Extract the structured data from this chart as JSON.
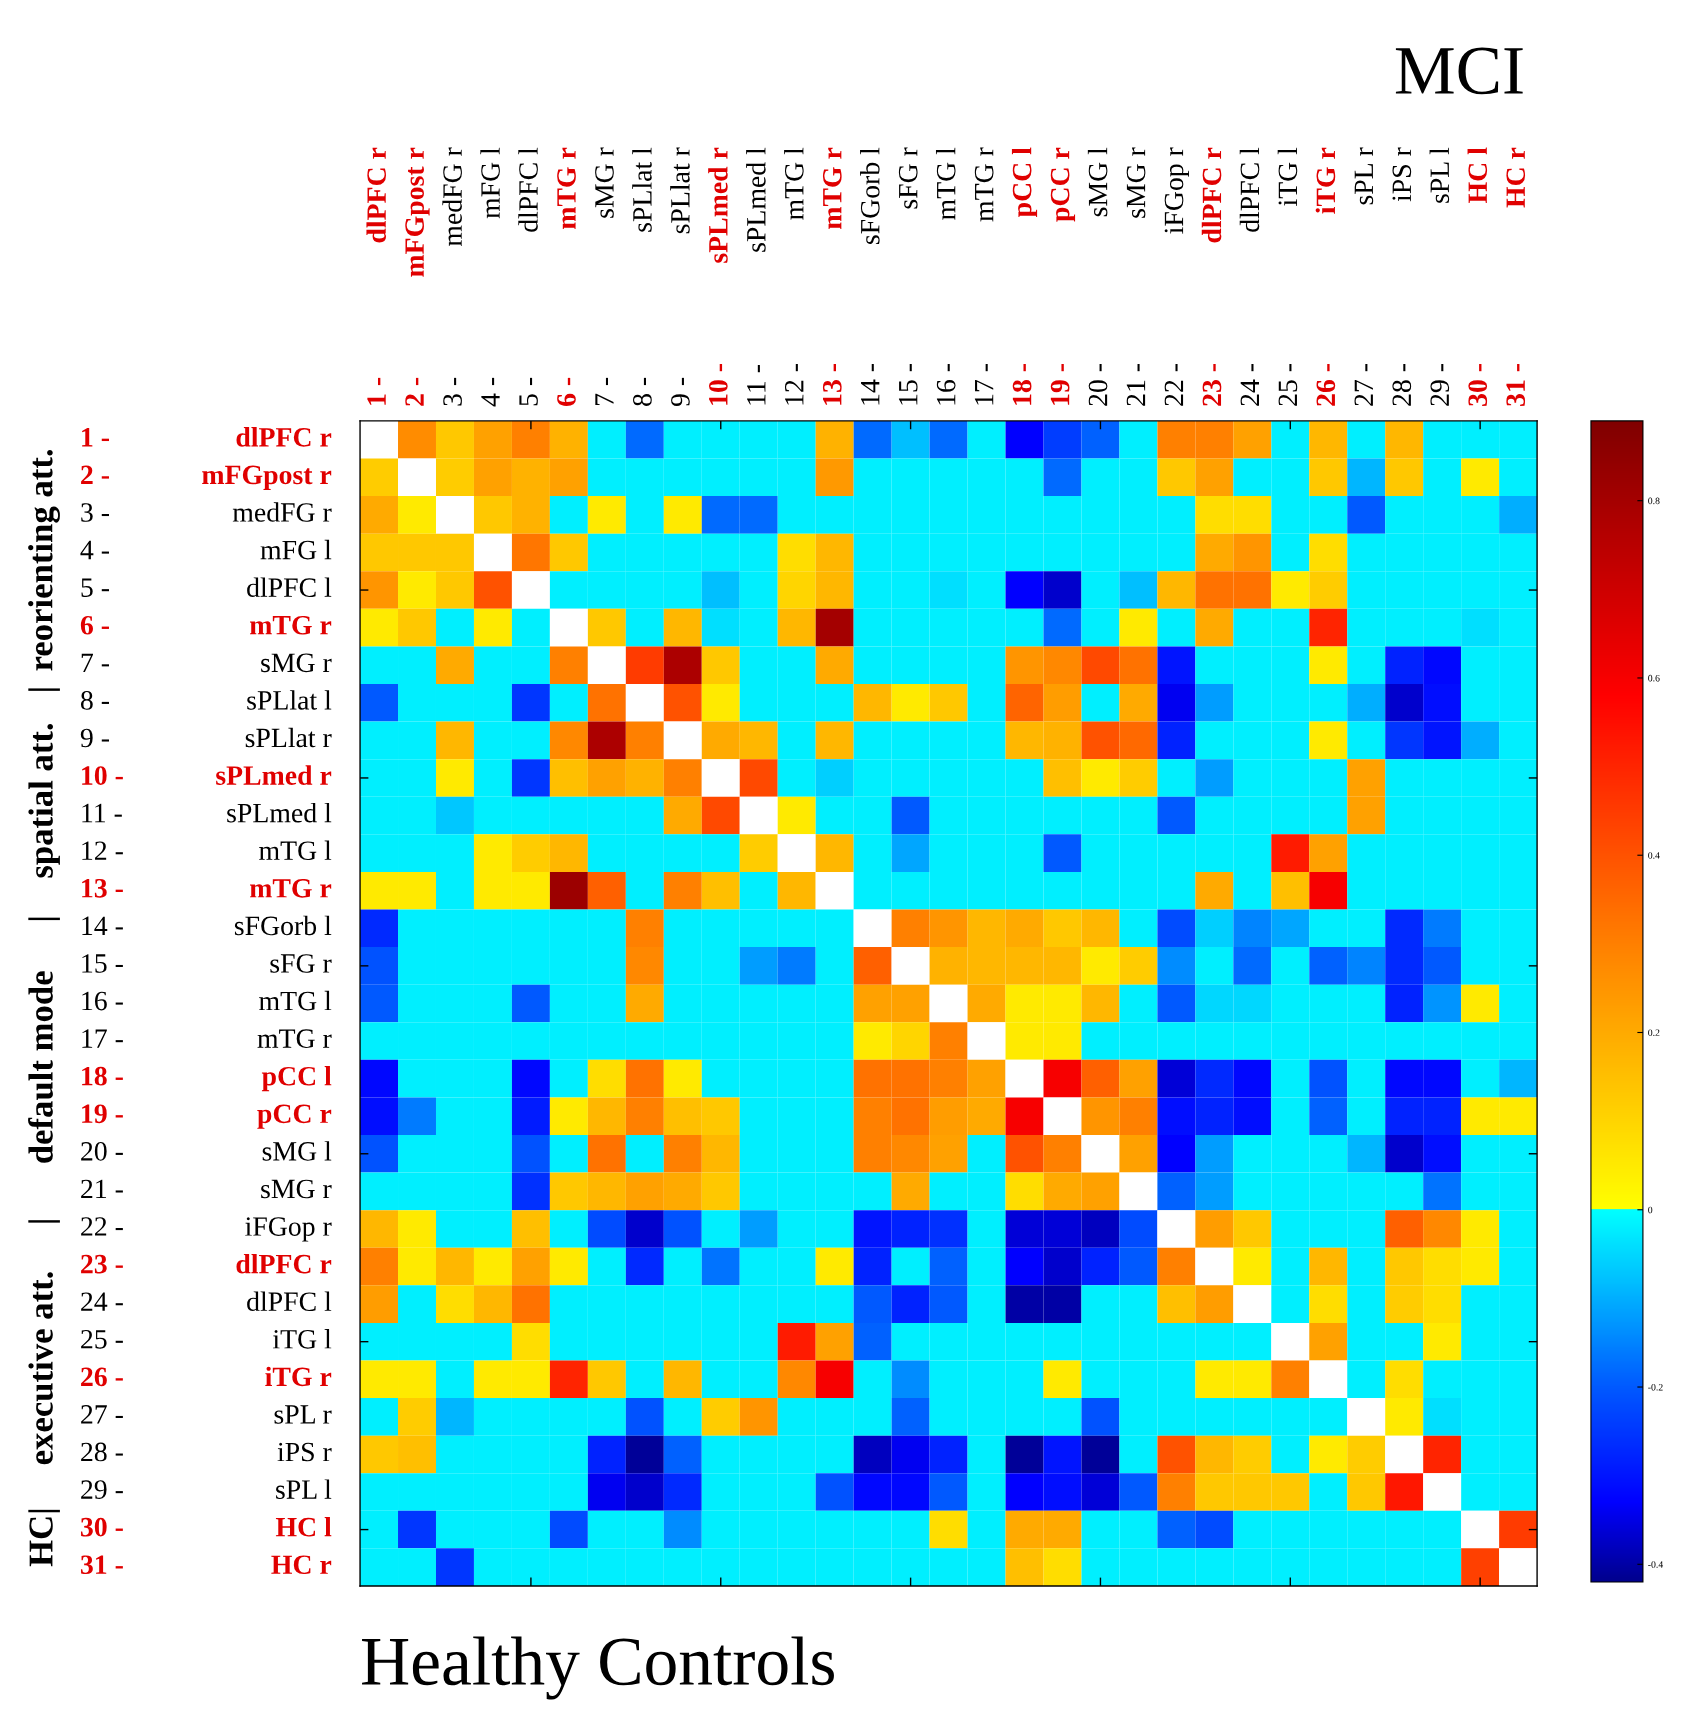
{
  "chart_data": {
    "type": "heatmap",
    "title": "MCI",
    "xlabel": "Healthy Controls",
    "categories": [
      "dlPFC r",
      "mFGpost r",
      "medFG r",
      "mFG l",
      "dlPFC l",
      "mTG r",
      "sMG r",
      "sPLlat l",
      "sPLlat r",
      "sPLmed r",
      "sPLmed l",
      "mTG l",
      "mTG r",
      "sFGorb l",
      "sFG r",
      "mTG l",
      "mTG r",
      "pCC l",
      "pCC r",
      "sMG l",
      "sMG r",
      "iFGop r",
      "dlPFC r",
      "dlPFC l",
      "iTG l",
      "iTG r",
      "sPL r",
      "iPS r",
      "sPL l",
      "HC l",
      "HC r"
    ],
    "y_categories": [
      "dlPFC r",
      "mFGpost r",
      "medFG r",
      "mFG l",
      "dlPFC l",
      "mTG r",
      "sMG r",
      "sPLlat l",
      "sPLlat r",
      "sPLmed r",
      "sPLmed l",
      "mTG l",
      "mTG r",
      "sFGorb l",
      "sFG r",
      "mTG l",
      "mTG r",
      "pCC l",
      "pCC r",
      "sMG l",
      "sMG r",
      "iFGop r",
      "dlPFC r",
      "dlPFC l",
      "iTG l",
      "iTG r",
      "sPL r",
      "iPS r",
      "sPL l",
      "HC l",
      "HC r"
    ],
    "y2_categories": [
      "1 -",
      "2 -",
      "3 -",
      "4 -",
      "5 -",
      "6 -",
      "7 -",
      "8 -",
      "9 -",
      "10 -",
      "11 -",
      "12 -",
      "13 -",
      "14 -",
      "15 -",
      "16 -",
      "17 -",
      "18 -",
      "19 -",
      "20 -",
      "21 -",
      "22 -",
      "23 -",
      "24 -",
      "25 -",
      "26 -",
      "27 -",
      "28 -",
      "29 -",
      "30 -",
      "31 -"
    ],
    "colors": [
      "#e00000",
      "#e00000",
      "#000000",
      "#000000",
      "#000000",
      "#e00000",
      "#000000",
      "#000000",
      "#000000",
      "#e00000",
      "#000000",
      "#000000",
      "#e00000",
      "#000000",
      "#000000",
      "#000000",
      "#000000",
      "#e00000",
      "#e00000",
      "#000000",
      "#000000",
      "#000000",
      "#e00000",
      "#000000",
      "#000000",
      "#e00000",
      "#000000",
      "#000000",
      "#000000",
      "#e00000",
      "#e00000"
    ],
    "annotations": [
      "reorienting att.",
      "|",
      "spatial att.",
      "|",
      "default mode",
      "|",
      "executive att.",
      "HC|"
    ],
    "clim": [
      -0.42,
      0.89
    ],
    "cticks": [
      -0.4,
      -0.2,
      0,
      0.2,
      0.4,
      0.6,
      0.8
    ],
    "grid": false,
    "cells": [
      [
        null,
        0.27,
        0.13,
        0.22,
        0.3,
        0.18,
        -0.02,
        -0.18,
        -0.02,
        -0.02,
        -0.02,
        -0.02,
        0.18,
        -0.18,
        -0.08,
        -0.18,
        -0.02,
        -0.33,
        -0.24,
        -0.19,
        -0.02,
        0.3,
        0.3,
        0.22,
        -0.02,
        0.17,
        -0.02,
        0.17,
        -0.02,
        -0.02,
        -0.02
      ],
      [
        0.12,
        null,
        0.12,
        0.22,
        0.18,
        0.22,
        -0.02,
        -0.02,
        -0.02,
        -0.02,
        -0.02,
        -0.02,
        0.24,
        -0.02,
        -0.02,
        -0.02,
        -0.02,
        -0.02,
        -0.18,
        -0.02,
        -0.02,
        0.13,
        0.22,
        -0.02,
        -0.02,
        0.13,
        -0.09,
        0.13,
        -0.02,
        0.05,
        -0.02
      ],
      [
        0.2,
        0.05,
        null,
        0.13,
        0.18,
        -0.02,
        0.05,
        -0.02,
        0.05,
        -0.18,
        -0.18,
        -0.02,
        -0.02,
        -0.02,
        -0.02,
        -0.02,
        -0.02,
        -0.02,
        -0.02,
        -0.02,
        -0.02,
        -0.02,
        0.08,
        0.08,
        -0.02,
        -0.02,
        -0.2,
        -0.02,
        -0.02,
        -0.02,
        -0.1
      ],
      [
        0.13,
        0.13,
        0.13,
        null,
        0.32,
        0.13,
        -0.02,
        -0.02,
        -0.02,
        -0.02,
        -0.02,
        0.08,
        0.17,
        -0.02,
        -0.02,
        -0.02,
        -0.02,
        -0.02,
        -0.02,
        -0.02,
        -0.02,
        -0.02,
        0.2,
        0.25,
        -0.02,
        0.08,
        -0.02,
        -0.02,
        -0.02,
        -0.02,
        -0.02
      ],
      [
        0.25,
        0.05,
        0.13,
        0.4,
        null,
        -0.02,
        -0.02,
        -0.02,
        -0.02,
        -0.08,
        -0.02,
        0.1,
        0.17,
        -0.02,
        -0.02,
        -0.04,
        -0.02,
        -0.33,
        -0.37,
        -0.02,
        -0.08,
        0.17,
        0.33,
        0.33,
        0.05,
        0.12,
        -0.02,
        -0.02,
        -0.02,
        -0.02,
        -0.02
      ],
      [
        0.05,
        0.13,
        -0.02,
        0.05,
        -0.02,
        null,
        0.13,
        -0.02,
        0.17,
        -0.04,
        -0.02,
        0.17,
        0.8,
        -0.02,
        -0.02,
        -0.02,
        -0.02,
        -0.02,
        -0.18,
        -0.02,
        0.05,
        -0.02,
        0.2,
        -0.02,
        -0.02,
        0.5,
        -0.02,
        -0.02,
        -0.02,
        -0.04,
        -0.02
      ],
      [
        -0.02,
        -0.02,
        0.2,
        -0.02,
        -0.02,
        0.3,
        null,
        0.45,
        0.78,
        0.13,
        -0.02,
        -0.02,
        0.2,
        -0.02,
        -0.02,
        -0.02,
        -0.02,
        0.25,
        0.28,
        0.42,
        0.33,
        -0.3,
        -0.02,
        -0.02,
        -0.02,
        0.05,
        -0.02,
        -0.28,
        -0.32,
        -0.02,
        -0.02
      ],
      [
        -0.2,
        -0.02,
        -0.02,
        -0.02,
        -0.25,
        -0.02,
        0.33,
        null,
        0.4,
        0.05,
        -0.02,
        -0.02,
        -0.02,
        0.17,
        0.05,
        0.13,
        -0.02,
        0.36,
        0.23,
        -0.02,
        0.2,
        -0.34,
        -0.12,
        -0.02,
        -0.02,
        -0.02,
        -0.1,
        -0.37,
        -0.31,
        -0.02,
        -0.02
      ],
      [
        -0.02,
        -0.02,
        0.17,
        -0.02,
        -0.02,
        0.28,
        0.78,
        0.3,
        null,
        0.2,
        0.17,
        -0.02,
        0.17,
        -0.02,
        -0.02,
        -0.02,
        -0.02,
        0.17,
        0.18,
        0.4,
        0.35,
        -0.28,
        -0.02,
        -0.02,
        -0.02,
        0.05,
        -0.02,
        -0.25,
        -0.3,
        -0.1,
        -0.02
      ],
      [
        -0.02,
        -0.02,
        0.05,
        -0.02,
        -0.25,
        0.15,
        0.22,
        0.18,
        0.3,
        null,
        0.42,
        -0.02,
        -0.06,
        -0.02,
        -0.02,
        -0.02,
        -0.02,
        -0.02,
        0.15,
        0.05,
        0.12,
        -0.02,
        -0.12,
        -0.02,
        -0.02,
        -0.02,
        0.22,
        -0.02,
        -0.02,
        -0.02,
        -0.02
      ],
      [
        -0.02,
        -0.02,
        -0.07,
        -0.02,
        -0.02,
        -0.02,
        -0.02,
        -0.02,
        0.2,
        0.42,
        null,
        0.05,
        -0.02,
        -0.02,
        -0.2,
        -0.02,
        -0.02,
        -0.02,
        -0.02,
        -0.02,
        -0.02,
        -0.2,
        -0.02,
        -0.02,
        -0.02,
        -0.02,
        0.22,
        -0.02,
        -0.02,
        -0.02,
        -0.02
      ],
      [
        -0.02,
        -0.02,
        -0.02,
        0.05,
        0.12,
        0.17,
        -0.02,
        -0.02,
        -0.02,
        -0.02,
        0.12,
        null,
        0.17,
        -0.02,
        -0.11,
        -0.02,
        -0.02,
        -0.02,
        -0.2,
        -0.02,
        -0.02,
        -0.02,
        -0.02,
        -0.02,
        0.52,
        0.22,
        -0.02,
        -0.02,
        -0.02,
        -0.02,
        -0.02
      ],
      [
        0.05,
        0.05,
        -0.02,
        0.05,
        0.05,
        0.82,
        0.37,
        -0.02,
        0.3,
        0.15,
        -0.02,
        0.17,
        null,
        -0.02,
        -0.02,
        -0.02,
        -0.02,
        -0.02,
        -0.02,
        -0.02,
        -0.02,
        -0.02,
        0.2,
        -0.02,
        0.15,
        0.6,
        -0.02,
        -0.02,
        -0.02,
        -0.02,
        -0.02
      ],
      [
        -0.27,
        -0.02,
        -0.02,
        -0.02,
        -0.02,
        -0.02,
        -0.02,
        0.3,
        -0.02,
        -0.02,
        -0.02,
        -0.02,
        -0.02,
        null,
        0.3,
        0.25,
        0.17,
        0.2,
        0.13,
        0.17,
        -0.02,
        -0.22,
        -0.06,
        -0.15,
        -0.11,
        -0.02,
        -0.02,
        -0.27,
        -0.16,
        -0.02,
        -0.02
      ],
      [
        -0.21,
        -0.02,
        -0.02,
        -0.02,
        -0.02,
        -0.02,
        -0.02,
        0.28,
        -0.02,
        -0.02,
        -0.12,
        -0.16,
        -0.02,
        0.37,
        null,
        0.18,
        0.17,
        0.17,
        0.17,
        0.05,
        0.12,
        -0.14,
        -0.02,
        -0.18,
        -0.02,
        -0.19,
        -0.15,
        -0.27,
        -0.2,
        -0.02,
        -0.02
      ],
      [
        -0.2,
        -0.02,
        -0.02,
        -0.02,
        -0.2,
        -0.02,
        -0.02,
        0.2,
        -0.02,
        -0.02,
        -0.02,
        -0.02,
        -0.02,
        0.22,
        0.22,
        null,
        0.2,
        0.05,
        0.05,
        0.17,
        -0.02,
        -0.2,
        -0.05,
        -0.05,
        -0.02,
        -0.02,
        -0.02,
        -0.28,
        -0.13,
        0.05,
        -0.02
      ],
      [
        -0.02,
        -0.02,
        -0.02,
        -0.02,
        -0.02,
        -0.02,
        -0.02,
        -0.02,
        -0.02,
        -0.02,
        -0.02,
        -0.02,
        -0.02,
        0.05,
        0.1,
        0.3,
        null,
        0.05,
        0.05,
        -0.02,
        -0.02,
        -0.02,
        -0.02,
        -0.02,
        -0.02,
        -0.02,
        -0.02,
        -0.02,
        -0.02,
        -0.02,
        -0.02
      ],
      [
        -0.32,
        -0.02,
        -0.02,
        -0.02,
        -0.32,
        -0.02,
        0.08,
        0.33,
        0.05,
        -0.02,
        -0.02,
        -0.02,
        -0.02,
        0.33,
        0.33,
        0.3,
        0.22,
        null,
        0.6,
        0.37,
        0.22,
        -0.36,
        -0.27,
        -0.32,
        -0.02,
        -0.21,
        -0.02,
        -0.32,
        -0.32,
        -0.02,
        -0.09
      ],
      [
        -0.31,
        -0.16,
        -0.02,
        -0.02,
        -0.29,
        0.05,
        0.17,
        0.3,
        0.15,
        0.13,
        -0.02,
        -0.02,
        -0.02,
        0.3,
        0.33,
        0.23,
        0.2,
        0.6,
        null,
        0.25,
        0.3,
        -0.31,
        -0.28,
        -0.31,
        -0.02,
        -0.19,
        -0.02,
        -0.28,
        -0.28,
        0.05,
        0.05
      ],
      [
        -0.21,
        -0.02,
        -0.02,
        -0.02,
        -0.21,
        -0.02,
        0.33,
        -0.02,
        0.3,
        0.17,
        -0.02,
        -0.02,
        -0.02,
        0.3,
        0.28,
        0.22,
        -0.02,
        0.4,
        0.3,
        null,
        0.22,
        -0.33,
        -0.12,
        -0.02,
        -0.02,
        -0.02,
        -0.09,
        -0.37,
        -0.31,
        -0.02,
        -0.02
      ],
      [
        -0.02,
        -0.02,
        -0.02,
        -0.02,
        -0.26,
        0.13,
        0.17,
        0.22,
        0.2,
        0.13,
        -0.02,
        -0.02,
        -0.02,
        -0.02,
        0.2,
        -0.02,
        -0.02,
        0.08,
        0.2,
        0.22,
        null,
        -0.19,
        -0.12,
        -0.02,
        -0.02,
        -0.02,
        -0.02,
        -0.02,
        -0.17,
        -0.02,
        -0.02
      ],
      [
        0.17,
        0.05,
        -0.02,
        -0.02,
        0.15,
        -0.02,
        -0.22,
        -0.37,
        -0.21,
        -0.02,
        -0.12,
        -0.02,
        -0.02,
        -0.3,
        -0.28,
        -0.26,
        -0.02,
        -0.36,
        -0.36,
        -0.38,
        -0.22,
        null,
        0.23,
        0.13,
        -0.02,
        -0.02,
        -0.02,
        0.37,
        0.28,
        0.05,
        -0.02
      ],
      [
        0.3,
        0.05,
        0.17,
        0.05,
        0.22,
        0.05,
        -0.02,
        -0.27,
        -0.02,
        -0.17,
        -0.02,
        -0.02,
        0.05,
        -0.28,
        -0.02,
        -0.19,
        -0.02,
        -0.33,
        -0.37,
        -0.28,
        -0.2,
        0.3,
        null,
        0.05,
        -0.02,
        0.17,
        -0.02,
        0.13,
        0.08,
        0.05,
        -0.02
      ],
      [
        0.23,
        -0.02,
        0.08,
        0.17,
        0.33,
        -0.02,
        -0.02,
        -0.02,
        -0.02,
        -0.02,
        -0.02,
        -0.02,
        -0.02,
        -0.2,
        -0.28,
        -0.2,
        -0.02,
        -0.4,
        -0.4,
        -0.02,
        -0.02,
        0.15,
        0.23,
        null,
        -0.02,
        0.08,
        -0.02,
        0.12,
        0.08,
        -0.02,
        -0.02
      ],
      [
        -0.02,
        -0.02,
        -0.02,
        -0.02,
        0.08,
        -0.02,
        -0.02,
        -0.02,
        -0.02,
        -0.02,
        -0.02,
        0.52,
        0.22,
        -0.19,
        -0.02,
        -0.02,
        -0.02,
        -0.02,
        -0.02,
        -0.02,
        -0.02,
        -0.02,
        -0.02,
        -0.02,
        null,
        0.22,
        -0.02,
        -0.02,
        0.05,
        -0.02,
        -0.02
      ],
      [
        0.05,
        0.05,
        -0.02,
        0.05,
        0.05,
        0.5,
        0.13,
        -0.02,
        0.17,
        -0.02,
        -0.02,
        0.28,
        0.6,
        -0.02,
        -0.14,
        -0.02,
        -0.02,
        -0.02,
        0.05,
        -0.02,
        -0.02,
        -0.02,
        0.05,
        0.05,
        0.3,
        null,
        -0.02,
        0.08,
        -0.02,
        -0.02,
        -0.02
      ],
      [
        -0.02,
        0.12,
        -0.09,
        -0.02,
        -0.02,
        -0.02,
        -0.02,
        -0.21,
        -0.02,
        0.12,
        0.25,
        -0.02,
        -0.02,
        -0.02,
        -0.19,
        -0.02,
        -0.02,
        -0.02,
        -0.02,
        -0.21,
        -0.02,
        -0.02,
        -0.02,
        -0.02,
        -0.02,
        -0.02,
        null,
        0.05,
        -0.04,
        -0.02,
        -0.02
      ],
      [
        0.13,
        0.15,
        -0.02,
        -0.02,
        -0.02,
        -0.02,
        -0.28,
        -0.41,
        -0.19,
        -0.02,
        -0.02,
        -0.02,
        -0.02,
        -0.38,
        -0.34,
        -0.28,
        -0.02,
        -0.41,
        -0.3,
        -0.41,
        -0.02,
        0.4,
        0.17,
        0.12,
        -0.02,
        0.05,
        0.12,
        null,
        0.5,
        -0.02,
        -0.02
      ],
      [
        -0.02,
        -0.02,
        -0.02,
        -0.02,
        -0.02,
        -0.02,
        -0.34,
        -0.37,
        -0.27,
        -0.02,
        -0.02,
        -0.02,
        -0.21,
        -0.32,
        -0.32,
        -0.2,
        -0.02,
        -0.33,
        -0.31,
        -0.36,
        -0.2,
        0.3,
        0.13,
        0.13,
        0.13,
        -0.02,
        0.13,
        0.53,
        null,
        -0.02,
        -0.02
      ],
      [
        -0.02,
        -0.25,
        -0.02,
        -0.02,
        -0.02,
        -0.22,
        -0.02,
        -0.02,
        -0.14,
        -0.02,
        -0.02,
        -0.02,
        -0.02,
        -0.02,
        -0.02,
        0.08,
        -0.02,
        0.2,
        0.2,
        -0.02,
        -0.02,
        -0.19,
        -0.22,
        -0.02,
        -0.02,
        -0.02,
        -0.02,
        -0.02,
        -0.02,
        null,
        0.45
      ],
      [
        -0.02,
        -0.02,
        -0.25,
        -0.02,
        -0.02,
        -0.02,
        -0.02,
        -0.02,
        -0.02,
        -0.02,
        -0.02,
        -0.02,
        -0.02,
        -0.02,
        -0.02,
        -0.02,
        -0.02,
        0.15,
        0.08,
        -0.02,
        -0.02,
        -0.02,
        -0.02,
        -0.02,
        -0.02,
        -0.02,
        -0.02,
        -0.02,
        -0.02,
        0.44,
        null
      ]
    ]
  }
}
